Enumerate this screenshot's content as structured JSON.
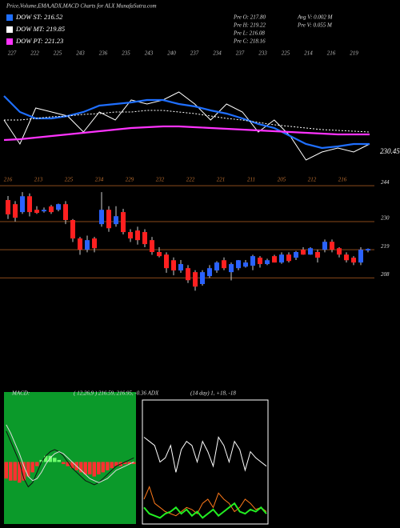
{
  "header": {
    "title": "Price,Volume,EMA,ADX,MACD Charts for ALX  MunafaSutra.com",
    "stats": [
      "Pre   O: 217.80",
      "Pre   H: 219.22",
      "Pre   L: 216.08",
      "Pre   C: 218.16",
      "Avg V: 0.002  M",
      "Pre   V: 0.055 M"
    ]
  },
  "chart_data": [
    {
      "type": "line",
      "top_labels": [
        227,
        222,
        225,
        243,
        236,
        235,
        243,
        240,
        237,
        234,
        237,
        233,
        225,
        214,
        216,
        219
      ],
      "annotation": "230.45",
      "ylim": [
        205,
        250
      ],
      "series": [
        {
          "color": "#ffffff",
          "values": [
            226,
            217,
            230.5,
            229,
            227.5,
            221.5,
            229,
            226,
            233.5,
            232,
            233.5,
            236.5,
            232,
            226,
            232,
            229,
            221.5,
            226,
            220,
            211,
            214,
            215.5,
            214,
            217
          ]
        },
        {
          "name": "DOW ST: 216.52",
          "color": "#1f6fff",
          "values": [
            235,
            229,
            226.6,
            226.6,
            227.5,
            229,
            231.4,
            232,
            232.6,
            233.5,
            233.5,
            232,
            231.1,
            229.6,
            228.4,
            226.6,
            224.5,
            223,
            220,
            217,
            215.5,
            216.1,
            217,
            217
          ]
        },
        {
          "name": "DOW MT: 219.85",
          "color": "#ffffff",
          "dash": true,
          "values": [
            226,
            226,
            226.6,
            227.2,
            227.5,
            228.1,
            228.4,
            229,
            229,
            229.6,
            229.6,
            229,
            228.4,
            227.5,
            226.6,
            226,
            225.1,
            224.2,
            223.6,
            223,
            222.4,
            222.1,
            221.8,
            221.5
          ]
        },
        {
          "name": "DOW PT: 221.23",
          "color": "#ff33ff",
          "values": [
            218.5,
            218.8,
            219.4,
            220,
            220.6,
            221.2,
            221.8,
            222.4,
            223,
            223.3,
            223.6,
            223.6,
            223.3,
            223,
            222.7,
            222.4,
            222.1,
            221.8,
            221.5,
            221.2,
            220.9,
            220.6,
            220.6,
            220.6
          ]
        }
      ]
    },
    {
      "type": "candlestick",
      "labels": [
        216,
        213,
        225,
        234,
        229,
        232,
        222,
        221,
        211,
        205,
        212,
        216
      ],
      "up_color": "#2a62ff",
      "down_color": "#ff2020",
      "ylim": [
        197.8,
        245.3
      ],
      "yticks": [
        208,
        219,
        230,
        244
      ],
      "open": [
        238.4,
        236.8,
        233.7,
        239.9,
        234.6,
        234,
        235.9,
        234.6,
        236.8,
        230.6,
        223.4,
        219,
        223.4,
        229,
        234.6,
        229,
        233.7,
        225.9,
        226.5,
        225.9,
        222.75,
        218.1,
        217.1,
        214.9,
        210.9,
        211.8,
        210.25,
        205.6,
        208.7,
        210.9,
        214.9,
        210.25,
        211.8,
        212.4,
        212.75,
        215.9,
        213.4,
        216.5,
        214,
        217.1,
        215.9,
        219,
        217.1,
        218.1,
        219,
        222.1,
        219.6,
        217.1,
        215.9,
        214,
        218.7
      ],
      "high": [
        240,
        238,
        241.5,
        241,
        236,
        235.5,
        236.5,
        237,
        238,
        231,
        224,
        224.5,
        224,
        241.5,
        236,
        236,
        235,
        227,
        228,
        227,
        224,
        220,
        218,
        216,
        215,
        213,
        211,
        211,
        213,
        214.5,
        216,
        214,
        215,
        215,
        217,
        216.5,
        215.5,
        217,
        218,
        218,
        218.5,
        220,
        220,
        219,
        223,
        223,
        220,
        218,
        216.5,
        220,
        219.5
      ],
      "low": [
        231,
        230,
        233,
        232,
        233,
        233.5,
        233,
        234,
        229,
        222,
        217,
        218,
        218,
        228,
        226,
        228,
        225,
        222,
        221,
        220,
        217,
        216,
        210,
        209,
        210,
        206,
        203,
        205,
        208,
        210,
        211,
        207,
        211,
        212,
        211,
        212,
        213,
        214,
        213.5,
        214,
        215,
        217,
        217,
        214,
        218,
        218,
        216,
        214,
        213,
        213,
        218
      ],
      "close": [
        232.8,
        231.5,
        239.9,
        233.7,
        233.4,
        234.6,
        233.7,
        236.8,
        230.6,
        223.4,
        219,
        222.75,
        219.6,
        234.6,
        227.4,
        232.1,
        225.9,
        223.4,
        222.75,
        221.2,
        218.1,
        216.5,
        211.8,
        210.9,
        213.4,
        207.1,
        204.6,
        210.25,
        211.8,
        214,
        211.8,
        213.4,
        214.9,
        214,
        216.5,
        213.4,
        214.9,
        214,
        217.1,
        214.6,
        218.1,
        217.1,
        219.6,
        215.9,
        222.1,
        219,
        217.1,
        214.9,
        214,
        219,
        219.3
      ]
    },
    {
      "type": "macd",
      "title": "MACD:",
      "params": "( 12,26,9 ) 216.59, 216.95, -0.36 ADX",
      "ylim": [
        -30,
        30
      ],
      "histogram": [
        -8,
        -9,
        -9,
        -10,
        -9,
        -7,
        -5,
        -2,
        1,
        3,
        3,
        2,
        1,
        -1,
        -2,
        -3,
        -4,
        -5,
        -6,
        -6,
        -7,
        -6,
        -5,
        -4,
        -3,
        -2,
        -2,
        -1,
        -1,
        -1
      ],
      "series": [
        {
          "color": "#111111",
          "values": [
            15,
            10,
            5,
            0,
            -8,
            -12,
            -10,
            -5,
            0,
            3,
            5,
            6,
            5,
            3,
            0,
            -3,
            -5,
            -7,
            -9,
            -10,
            -11,
            -10,
            -8,
            -6,
            -4,
            -2,
            -1,
            0,
            1,
            2
          ]
        },
        {
          "color": "#dddddd",
          "values": [
            18,
            14,
            9,
            4,
            -2,
            -7,
            -9,
            -8,
            -5,
            -1,
            2,
            4,
            5,
            4,
            2,
            0,
            -2,
            -4,
            -6,
            -8,
            -9,
            -10,
            -9,
            -8,
            -6,
            -4,
            -3,
            -2,
            -1,
            0
          ]
        }
      ]
    },
    {
      "type": "adx",
      "title": "(14 day) 1, +18, -18",
      "ylim": [
        0,
        60
      ],
      "series": [
        {
          "color": "#ffffff",
          "values": [
            42,
            40,
            38,
            30,
            32,
            38,
            25,
            36,
            40,
            38,
            30,
            40,
            35,
            28,
            42,
            38,
            30,
            40,
            36,
            26,
            35,
            32,
            30,
            28
          ]
        },
        {
          "color": "#ff7a1a",
          "values": [
            12,
            18,
            10,
            8,
            6,
            5,
            4,
            6,
            8,
            7,
            5,
            10,
            12,
            8,
            15,
            12,
            10,
            6,
            8,
            12,
            10,
            7,
            8,
            6
          ]
        },
        {
          "color": "#22ee22",
          "values": [
            8,
            5,
            4,
            3,
            5,
            6,
            8,
            5,
            7,
            4,
            6,
            3,
            5,
            7,
            4,
            6,
            8,
            10,
            6,
            5,
            7,
            6,
            8,
            5
          ]
        }
      ]
    }
  ]
}
